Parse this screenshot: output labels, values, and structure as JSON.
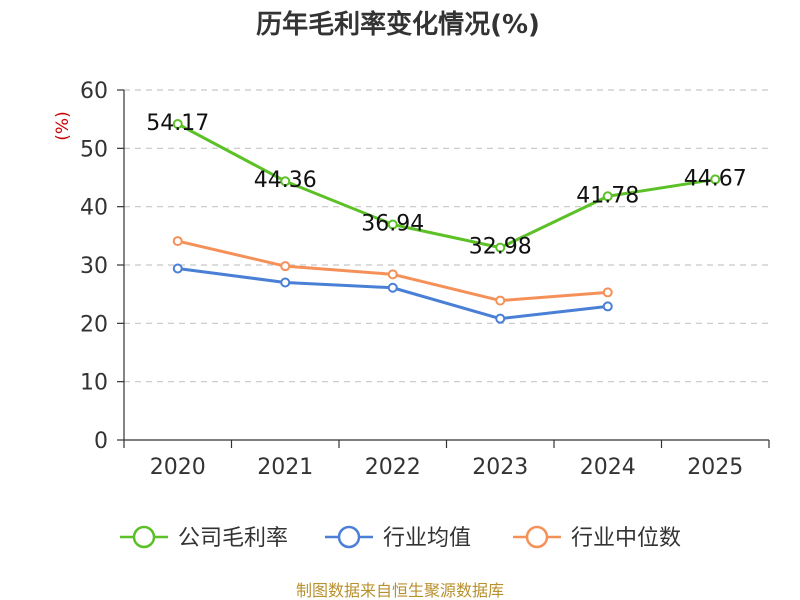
{
  "chart_data": {
    "type": "line",
    "title": "历年毛利率变化情况(%)",
    "ylabel": "(%)",
    "xlabel": "",
    "categories": [
      "2020",
      "2021",
      "2022",
      "2023",
      "2024",
      "2025"
    ],
    "ylim": [
      0,
      60
    ],
    "yticks": [
      0,
      10,
      20,
      30,
      40,
      50,
      60
    ],
    "grid": true,
    "legend_position": "bottom",
    "series": [
      {
        "name": "公司毛利率",
        "color": "#5cc027",
        "values": [
          54.17,
          44.36,
          36.94,
          32.98,
          41.78,
          44.67
        ],
        "labels": [
          "54.17",
          "44.36",
          "36.94",
          "32.98",
          "41.78",
          "44.67"
        ]
      },
      {
        "name": "行业均值",
        "color": "#4a7fd6",
        "values": [
          29.4,
          27.0,
          26.1,
          20.8,
          22.9,
          null
        ]
      },
      {
        "name": "行业中位数",
        "color": "#f59158",
        "values": [
          34.1,
          29.8,
          28.4,
          23.9,
          25.3,
          null
        ]
      }
    ],
    "source": "制图数据来自恒生聚源数据库"
  }
}
